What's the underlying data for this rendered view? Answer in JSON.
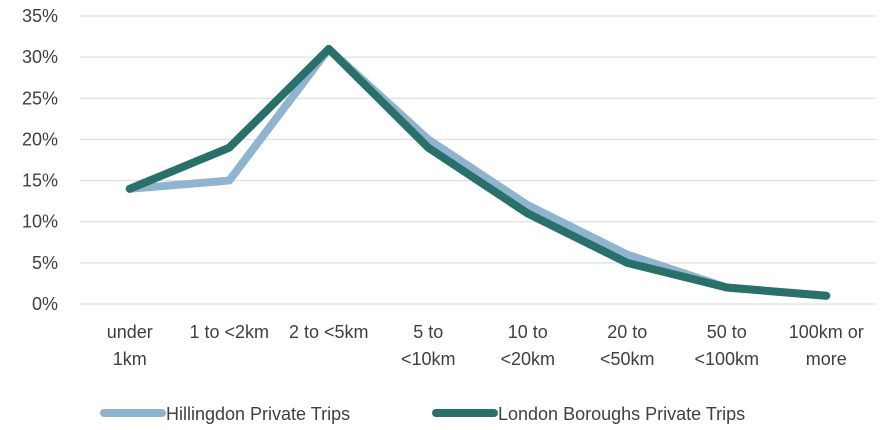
{
  "chart_data": {
    "type": "line",
    "title": "",
    "xlabel": "",
    "ylabel": "",
    "categories": [
      [
        "under",
        "1km"
      ],
      [
        "1 to <2km"
      ],
      [
        "2 to <5km"
      ],
      [
        "5 to",
        "<10km"
      ],
      [
        "10 to",
        "<20km"
      ],
      [
        "20 to",
        "<50km"
      ],
      [
        "50 to",
        "<100km"
      ],
      [
        "100km or",
        "more"
      ]
    ],
    "ylim": [
      0,
      35
    ],
    "yticks": [
      0,
      5,
      10,
      15,
      20,
      25,
      30,
      35
    ],
    "ytick_suffix": "%",
    "grid": true,
    "legend_position": "bottom",
    "series": [
      {
        "name": "Hillingdon Private Trips",
        "color": "#8fb4cf",
        "values": [
          14,
          15,
          31,
          20,
          12,
          6,
          2,
          1
        ]
      },
      {
        "name": "London Boroughs Private Trips",
        "color": "#2a706a",
        "values": [
          14,
          19,
          31,
          19,
          11,
          5,
          2,
          1
        ]
      }
    ]
  }
}
